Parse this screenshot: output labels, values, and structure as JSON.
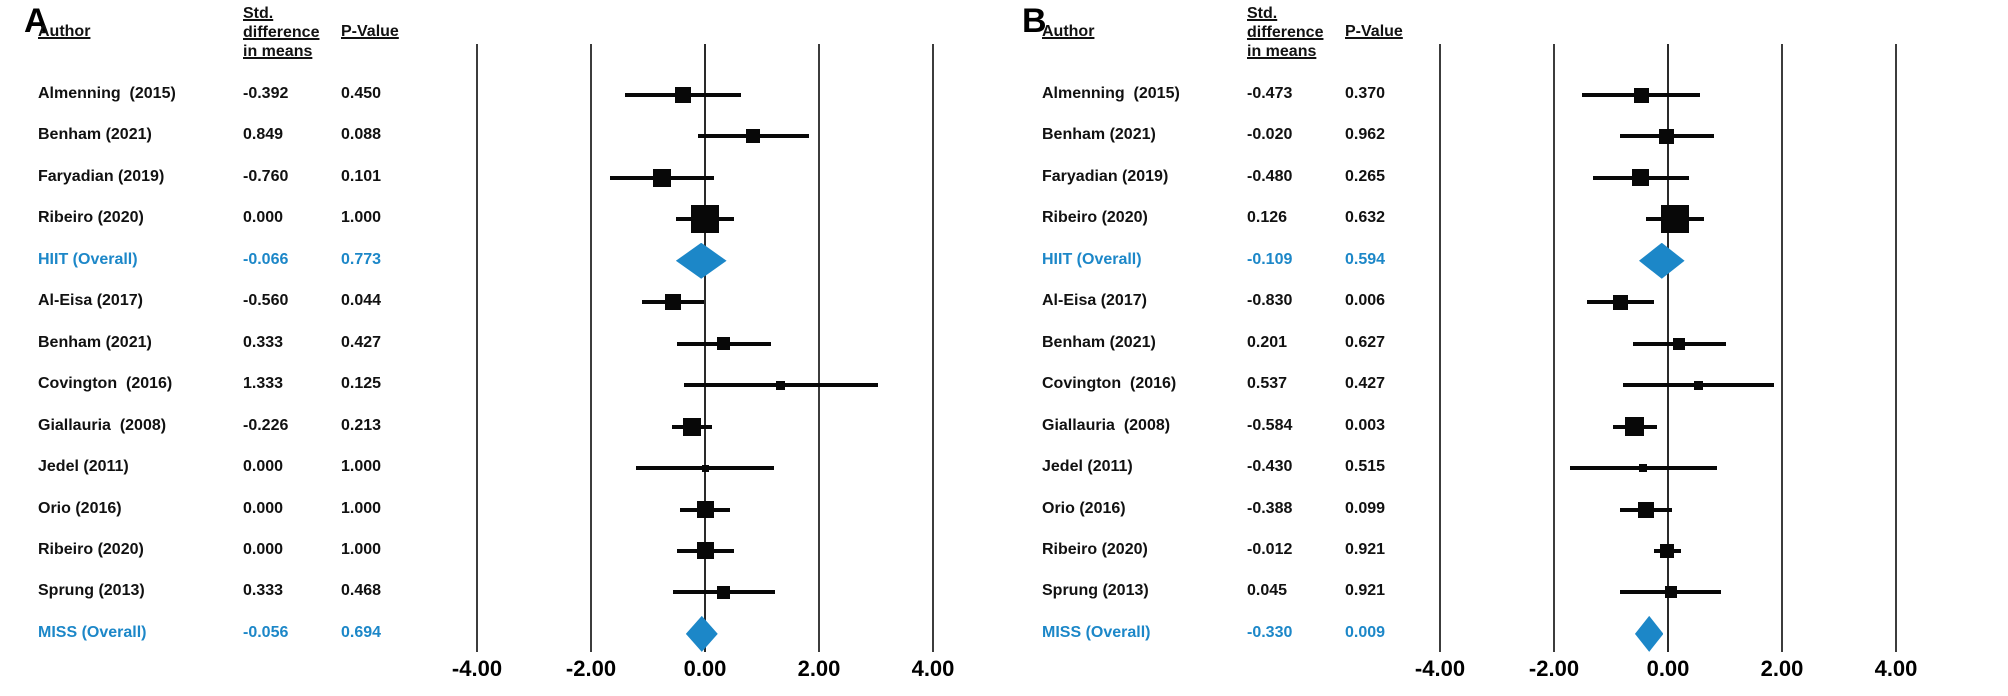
{
  "figure": {
    "accent_color": "#1c87c8",
    "marker_color": "#080808",
    "text_color": "#111111",
    "panels": [
      "A",
      "B"
    ]
  },
  "chart_data": [
    {
      "type": "forest",
      "panel_label": "A",
      "columns": {
        "author": "Author",
        "sdm_lines": [
          "Std.",
          "difference",
          "in means"
        ],
        "p": "P-Value"
      },
      "x_tick_labels": [
        "-4.00",
        "-2.00",
        "0.00",
        "2.00",
        "4.00"
      ],
      "x_ticks": [
        -4,
        -2,
        0,
        2,
        4
      ],
      "xlim": [
        -4.6,
        4.6
      ],
      "grid": "vertical-lines",
      "rows": [
        {
          "author": "Almenning  (2015)",
          "sdm": "-0.392",
          "p": "0.450",
          "effect": -0.392,
          "ci_low": -1.41,
          "ci_high": 0.63,
          "marker": "square",
          "size": 16,
          "overall": false
        },
        {
          "author": "Benham (2021)",
          "sdm": "0.849",
          "p": "0.088",
          "effect": 0.849,
          "ci_low": -0.13,
          "ci_high": 1.82,
          "marker": "square",
          "size": 14,
          "overall": false
        },
        {
          "author": "Faryadian (2019)",
          "sdm": "-0.760",
          "p": "0.101",
          "effect": -0.76,
          "ci_low": -1.67,
          "ci_high": 0.15,
          "marker": "square",
          "size": 18,
          "overall": false
        },
        {
          "author": "Ribeiro (2020)",
          "sdm": "0.000",
          "p": "1.000",
          "effect": 0.0,
          "ci_low": -0.51,
          "ci_high": 0.51,
          "marker": "square",
          "size": 28,
          "overall": false
        },
        {
          "author": "HIIT (Overall)",
          "sdm": "-0.066",
          "p": "0.773",
          "effect": -0.066,
          "ci_low": -0.51,
          "ci_high": 0.38,
          "marker": "diamond",
          "size": 36,
          "overall": true
        },
        {
          "author": "Al-Eisa (2017)",
          "sdm": "-0.560",
          "p": "0.044",
          "effect": -0.56,
          "ci_low": -1.1,
          "ci_high": -0.02,
          "marker": "square",
          "size": 16,
          "overall": false
        },
        {
          "author": "Benham (2021)",
          "sdm": "0.333",
          "p": "0.427",
          "effect": 0.333,
          "ci_low": -0.49,
          "ci_high": 1.16,
          "marker": "square",
          "size": 13,
          "overall": false
        },
        {
          "author": "Covington  (2016)",
          "sdm": "1.333",
          "p": "0.125",
          "effect": 1.333,
          "ci_low": -0.37,
          "ci_high": 3.04,
          "marker": "square",
          "size": 9,
          "overall": false
        },
        {
          "author": "Giallauria  (2008)",
          "sdm": "-0.226",
          "p": "0.213",
          "effect": -0.226,
          "ci_low": -0.58,
          "ci_high": 0.13,
          "marker": "square",
          "size": 18,
          "overall": false
        },
        {
          "author": "Jedel (2011)",
          "sdm": "0.000",
          "p": "1.000",
          "effect": 0.0,
          "ci_low": -1.21,
          "ci_high": 1.21,
          "marker": "square",
          "size": 7,
          "overall": false
        },
        {
          "author": "Orio (2016)",
          "sdm": "0.000",
          "p": "1.000",
          "effect": 0.0,
          "ci_low": -0.44,
          "ci_high": 0.44,
          "marker": "square",
          "size": 17,
          "overall": false
        },
        {
          "author": "Ribeiro (2020)",
          "sdm": "0.000",
          "p": "1.000",
          "effect": 0.0,
          "ci_low": -0.5,
          "ci_high": 0.5,
          "marker": "square",
          "size": 17,
          "overall": false
        },
        {
          "author": "Sprung (2013)",
          "sdm": "0.333",
          "p": "0.468",
          "effect": 0.333,
          "ci_low": -0.57,
          "ci_high": 1.23,
          "marker": "square",
          "size": 13,
          "overall": false
        },
        {
          "author": "MISS (Overall)",
          "sdm": "-0.056",
          "p": "0.694",
          "effect": -0.056,
          "ci_low": -0.34,
          "ci_high": 0.22,
          "marker": "diamond",
          "size": 36,
          "overall": true
        }
      ]
    },
    {
      "type": "forest",
      "panel_label": "B",
      "columns": {
        "author": "Author",
        "sdm_lines": [
          "Std.",
          "difference",
          "in means"
        ],
        "p": "P-Value"
      },
      "x_tick_labels": [
        "-4.00",
        "-2.00",
        "0.00",
        "2.00",
        "4.00"
      ],
      "x_ticks": [
        -4,
        -2,
        0,
        2,
        4
      ],
      "xlim": [
        -4.6,
        4.6
      ],
      "grid": "vertical-lines",
      "rows": [
        {
          "author": "Almenning  (2015)",
          "sdm": "-0.473",
          "p": "0.370",
          "effect": -0.473,
          "ci_low": -1.51,
          "ci_high": 0.56,
          "marker": "square",
          "size": 15,
          "overall": false
        },
        {
          "author": "Benham (2021)",
          "sdm": "-0.020",
          "p": "0.962",
          "effect": -0.02,
          "ci_low": -0.84,
          "ci_high": 0.8,
          "marker": "square",
          "size": 15,
          "overall": false
        },
        {
          "author": "Faryadian (2019)",
          "sdm": "-0.480",
          "p": "0.265",
          "effect": -0.48,
          "ci_low": -1.32,
          "ci_high": 0.36,
          "marker": "square",
          "size": 17,
          "overall": false
        },
        {
          "author": "Ribeiro (2020)",
          "sdm": "0.126",
          "p": "0.632",
          "effect": 0.126,
          "ci_low": -0.39,
          "ci_high": 0.64,
          "marker": "square",
          "size": 28,
          "overall": false
        },
        {
          "author": "HIIT (Overall)",
          "sdm": "-0.109",
          "p": "0.594",
          "effect": -0.109,
          "ci_low": -0.51,
          "ci_high": 0.29,
          "marker": "diamond",
          "size": 36,
          "overall": true
        },
        {
          "author": "Al-Eisa (2017)",
          "sdm": "-0.830",
          "p": "0.006",
          "effect": -0.83,
          "ci_low": -1.42,
          "ci_high": -0.24,
          "marker": "square",
          "size": 15,
          "overall": false
        },
        {
          "author": "Benham (2021)",
          "sdm": "0.201",
          "p": "0.627",
          "effect": 0.201,
          "ci_low": -0.61,
          "ci_high": 1.01,
          "marker": "square",
          "size": 12,
          "overall": false
        },
        {
          "author": "Covington  (2016)",
          "sdm": "0.537",
          "p": "0.427",
          "effect": 0.537,
          "ci_low": -0.79,
          "ci_high": 1.86,
          "marker": "square",
          "size": 9,
          "overall": false
        },
        {
          "author": "Giallauria  (2008)",
          "sdm": "-0.584",
          "p": "0.003",
          "effect": -0.584,
          "ci_low": -0.97,
          "ci_high": -0.2,
          "marker": "square",
          "size": 19,
          "overall": false
        },
        {
          "author": "Jedel (2011)",
          "sdm": "-0.430",
          "p": "0.515",
          "effect": -0.43,
          "ci_low": -1.72,
          "ci_high": 0.86,
          "marker": "square",
          "size": 8,
          "overall": false
        },
        {
          "author": "Orio (2016)",
          "sdm": "-0.388",
          "p": "0.099",
          "effect": -0.388,
          "ci_low": -0.85,
          "ci_high": 0.07,
          "marker": "square",
          "size": 16,
          "overall": false
        },
        {
          "author": "Ribeiro (2020)",
          "sdm": "-0.012",
          "p": "0.921",
          "effect": -0.012,
          "ci_low": -0.25,
          "ci_high": 0.23,
          "marker": "square",
          "size": 14,
          "overall": false
        },
        {
          "author": "Sprung (2013)",
          "sdm": "0.045",
          "p": "0.921",
          "effect": 0.045,
          "ci_low": -0.84,
          "ci_high": 0.93,
          "marker": "square",
          "size": 12,
          "overall": false
        },
        {
          "author": "MISS (Overall)",
          "sdm": "-0.330",
          "p": "0.009",
          "effect": -0.33,
          "ci_low": -0.58,
          "ci_high": -0.08,
          "marker": "diamond",
          "size": 36,
          "overall": true
        }
      ]
    }
  ]
}
